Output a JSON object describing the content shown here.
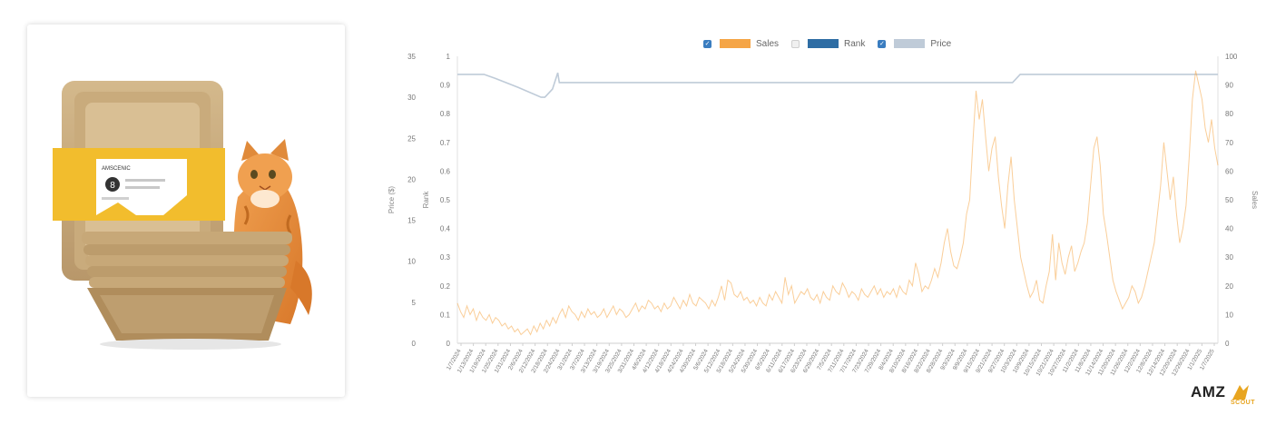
{
  "legend": [
    {
      "label": "Sales",
      "checked": true,
      "color": "#f5a546"
    },
    {
      "label": "Rank",
      "checked": false,
      "color": "#2e6da4"
    },
    {
      "label": "Price",
      "checked": true,
      "color": "#bfcbd8"
    }
  ],
  "logo": {
    "main": "AMZ",
    "sub": "SCOUT"
  },
  "product_label": {
    "brand": "AMSCENIC",
    "number": "8"
  },
  "chart_data": {
    "type": "line",
    "y_left_outer_label": "Price ($)",
    "y_left_outer_ticks": [
      "0",
      "5",
      "10",
      "15",
      "20",
      "25",
      "30",
      "35"
    ],
    "y_left_outer_range": [
      0,
      35
    ],
    "y_left_inner_label": "Rank",
    "y_left_inner_ticks": [
      "0",
      "0.1",
      "0.2",
      "0.3",
      "0.4",
      "0.5",
      "0.6",
      "0.7",
      "0.8",
      "0.9",
      "1"
    ],
    "y_left_inner_range": [
      0,
      1
    ],
    "y_right_label": "Sales",
    "y_right_ticks": [
      "0",
      "10",
      "20",
      "30",
      "40",
      "50",
      "60",
      "70",
      "80",
      "90",
      "100"
    ],
    "y_right_range": [
      0,
      100
    ],
    "x_tick_labels": [
      "1/7/2024",
      "1/13/2024",
      "1/19/2024",
      "1/25/2024",
      "1/31/2024",
      "2/6/2024",
      "2/12/2024",
      "2/18/2024",
      "2/24/2024",
      "3/1/2024",
      "3/7/2024",
      "3/13/2024",
      "3/19/2024",
      "3/25/2024",
      "3/31/2024",
      "4/6/2024",
      "4/12/2024",
      "4/18/2024",
      "4/24/2024",
      "4/30/2024",
      "5/6/2024",
      "5/12/2024",
      "5/18/2024",
      "5/24/2024",
      "5/30/2024",
      "6/5/2024",
      "6/11/2024",
      "6/17/2024",
      "6/23/2024",
      "6/29/2024",
      "7/5/2024",
      "7/11/2024",
      "7/17/2024",
      "7/23/2024",
      "7/29/2024",
      "8/4/2024",
      "8/10/2024",
      "8/16/2024",
      "8/22/2024",
      "8/28/2024",
      "9/3/2024",
      "9/9/2024",
      "9/15/2024",
      "9/21/2024",
      "9/27/2024",
      "10/3/2024",
      "10/9/2024",
      "10/15/2024",
      "10/21/2024",
      "10/27/2024",
      "11/2/2024",
      "11/8/2024",
      "11/14/2024",
      "11/20/2024",
      "11/26/2024",
      "12/2/2024",
      "12/8/2024",
      "12/14/2024",
      "12/20/2024",
      "12/26/2024",
      "1/1/2025",
      "1/7/2025"
    ],
    "series": [
      {
        "name": "Sales",
        "axis": "right",
        "color": "#f5a546",
        "values": [
          14,
          11,
          9,
          13,
          10,
          12,
          8,
          11,
          9,
          8,
          10,
          7,
          9,
          8,
          6,
          7,
          5,
          6,
          4,
          5,
          3,
          4,
          5,
          3,
          6,
          4,
          7,
          5,
          8,
          6,
          9,
          7,
          10,
          12,
          9,
          13,
          11,
          10,
          8,
          11,
          9,
          12,
          10,
          11,
          9,
          10,
          12,
          9,
          11,
          13,
          10,
          12,
          11,
          9,
          10,
          12,
          14,
          11,
          13,
          12,
          15,
          14,
          12,
          13,
          11,
          14,
          12,
          13,
          16,
          14,
          12,
          15,
          13,
          17,
          14,
          13,
          16,
          15,
          14,
          12,
          15,
          13,
          16,
          20,
          15,
          22,
          21,
          17,
          16,
          18,
          15,
          16,
          14,
          15,
          13,
          16,
          14,
          13,
          17,
          15,
          18,
          16,
          14,
          23,
          17,
          20,
          14,
          16,
          18,
          17,
          19,
          16,
          15,
          17,
          14,
          18,
          16,
          15,
          20,
          18,
          17,
          21,
          19,
          16,
          18,
          17,
          15,
          19,
          17,
          16,
          18,
          20,
          17,
          19,
          16,
          18,
          17,
          19,
          16,
          20,
          18,
          17,
          22,
          20,
          28,
          24,
          18,
          20,
          19,
          22,
          26,
          23,
          28,
          35,
          40,
          32,
          27,
          26,
          30,
          35,
          45,
          50,
          70,
          88,
          78,
          85,
          72,
          60,
          68,
          72,
          58,
          48,
          40,
          55,
          65,
          50,
          40,
          30,
          25,
          20,
          16,
          18,
          22,
          15,
          14,
          20,
          25,
          38,
          22,
          35,
          28,
          24,
          30,
          34,
          25,
          28,
          32,
          35,
          42,
          55,
          68,
          72,
          62,
          45,
          38,
          30,
          22,
          18,
          15,
          12,
          14,
          16,
          20,
          18,
          14,
          16,
          20,
          25,
          30,
          35,
          45,
          55,
          70,
          60,
          50,
          58,
          45,
          35,
          40,
          48,
          65,
          85,
          95,
          90,
          85,
          75,
          70,
          78,
          68,
          62
        ]
      },
      {
        "name": "Price",
        "axis": "left_outer",
        "color": "#bfcbd8",
        "points": [
          [
            0,
            32.8
          ],
          [
            0.035,
            32.8
          ],
          [
            0.05,
            32.3
          ],
          [
            0.08,
            31.2
          ],
          [
            0.11,
            30.0
          ],
          [
            0.115,
            30.0
          ],
          [
            0.125,
            31.0
          ],
          [
            0.132,
            33.0
          ],
          [
            0.134,
            31.8
          ],
          [
            0.25,
            31.8
          ],
          [
            0.4,
            31.8
          ],
          [
            0.55,
            31.8
          ],
          [
            0.7,
            31.8
          ],
          [
            0.73,
            31.8
          ],
          [
            0.74,
            32.8
          ],
          [
            0.9,
            32.8
          ],
          [
            1,
            32.8
          ]
        ]
      }
    ]
  }
}
